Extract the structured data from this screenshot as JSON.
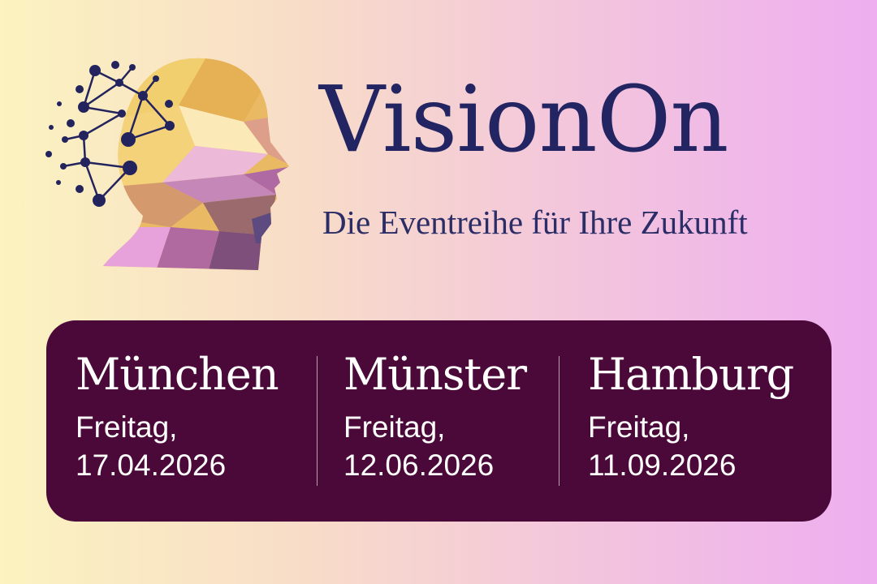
{
  "brand": {
    "title": "VisionOn",
    "subtitle": "Die Eventreihe für Ihre Zukunft",
    "logo_icon": "polygon-head-network-icon"
  },
  "colors": {
    "title": "#232563",
    "box": "#4b0939",
    "network": "#23235e"
  },
  "events": [
    {
      "city": "München",
      "day": "Freitag,",
      "date": "17.04.2026"
    },
    {
      "city": "Münster",
      "day": "Freitag,",
      "date": "12.06.2026"
    },
    {
      "city": "Hamburg",
      "day": "Freitag,",
      "date": "11.09.2026"
    }
  ]
}
